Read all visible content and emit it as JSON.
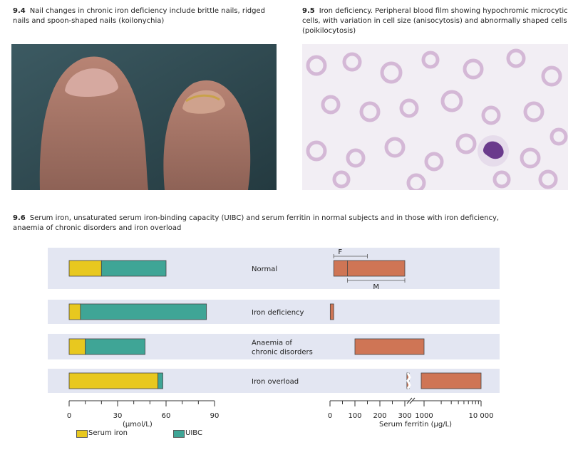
{
  "figures": {
    "fig94": {
      "num": "9.4",
      "caption": "Nail changes in chronic iron deficiency include brittle nails, ridged nails and spoon-shaped nails (koilonychia)"
    },
    "fig95": {
      "num": "9.5",
      "caption": "Iron deficiency. Peripheral blood film showing hypochromic microcytic cells, with variation in cell size (anisocytosis) and abnormally shaped cells (poikilocytosis)"
    },
    "fig96": {
      "num": "9.6",
      "caption": "Serum iron, unsaturated serum iron-binding capacity (UIBC) and serum ferritin in normal subjects and in those with iron deficiency, anaemia of chronic disorders and iron overload"
    }
  },
  "colors": {
    "serum_iron": "#e8c81f",
    "uibc": "#3fa596",
    "ferritin": "#cf7555",
    "band": "#e3e6f2",
    "axis": "#333333"
  },
  "chart_data": {
    "type": "bar",
    "categories": [
      "Normal",
      "Iron deficiency",
      "Anaemia of chronic disorders",
      "Iron overload"
    ],
    "category_lines": [
      [
        "Normal"
      ],
      [
        "Iron deficiency"
      ],
      [
        "Anaemia of",
        "chronic disorders"
      ],
      [
        "Iron overload"
      ]
    ],
    "left_axis": {
      "ticks": [
        "0",
        "30",
        "60",
        "90"
      ],
      "unit": "(µmol/L)",
      "range": [
        0,
        90
      ],
      "series": [
        {
          "name": "Serum iron",
          "values": [
            20,
            7,
            10,
            55
          ]
        },
        {
          "name": "UIBC",
          "values": [
            40,
            78,
            37,
            3
          ]
        }
      ]
    },
    "right_axis": {
      "ticks": [
        "0",
        "100",
        "200",
        "300",
        "1000",
        "10 000"
      ],
      "label": "Serum ferritin (µg/L)",
      "break_between": [
        300,
        1000
      ],
      "ranges": [
        [
          15,
          300
        ],
        [
          1,
          15
        ],
        [
          100,
          1000
        ],
        [
          500,
          10000
        ]
      ],
      "normal_F": [
        15,
        150
      ],
      "normal_M": [
        70,
        300
      ],
      "range_labels": {
        "F": "F",
        "M": "M"
      }
    }
  }
}
